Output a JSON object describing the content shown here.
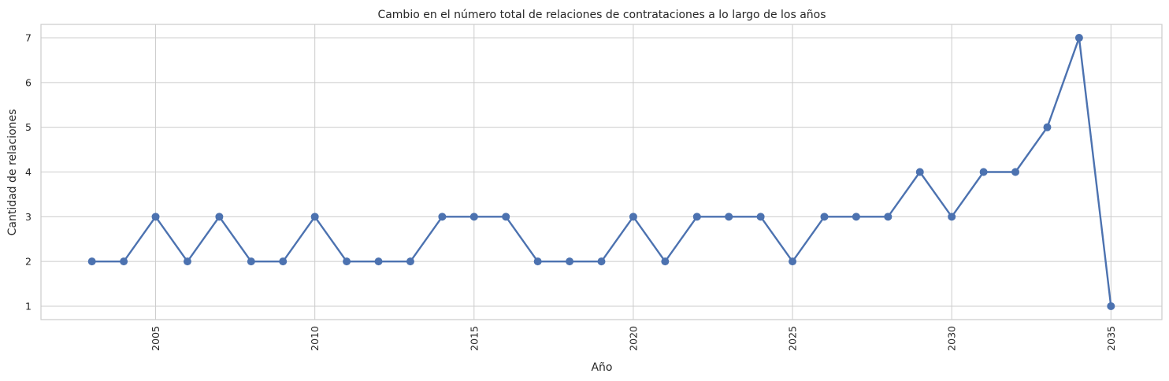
{
  "chart_data": {
    "type": "line",
    "title": "Cambio en el número total de relaciones de contrataciones a lo largo de los años",
    "xlabel": "Año",
    "ylabel": "Cantidad de relaciones",
    "x": [
      2003,
      2004,
      2005,
      2006,
      2007,
      2008,
      2009,
      2010,
      2011,
      2012,
      2013,
      2014,
      2015,
      2016,
      2017,
      2018,
      2019,
      2020,
      2021,
      2022,
      2023,
      2024,
      2025,
      2026,
      2027,
      2028,
      2029,
      2030,
      2031,
      2032,
      2033,
      2034,
      2035
    ],
    "series": [
      {
        "values": [
          2,
          2,
          3,
          2,
          3,
          2,
          2,
          3,
          2,
          2,
          2,
          3,
          3,
          3,
          2,
          2,
          2,
          3,
          2,
          3,
          3,
          3,
          2,
          3,
          3,
          3,
          4,
          3,
          4,
          4,
          5,
          7,
          1
        ],
        "color": "#4c72b0",
        "marker": "circle"
      }
    ],
    "xticks": [
      2005,
      2010,
      2015,
      2020,
      2025,
      2030,
      2035
    ],
    "yticks": [
      1,
      2,
      3,
      4,
      5,
      6,
      7
    ],
    "xlim": [
      2001.4,
      2036.6
    ],
    "ylim": [
      0.7,
      7.3
    ],
    "grid": true,
    "xtick_rotation": 90
  }
}
